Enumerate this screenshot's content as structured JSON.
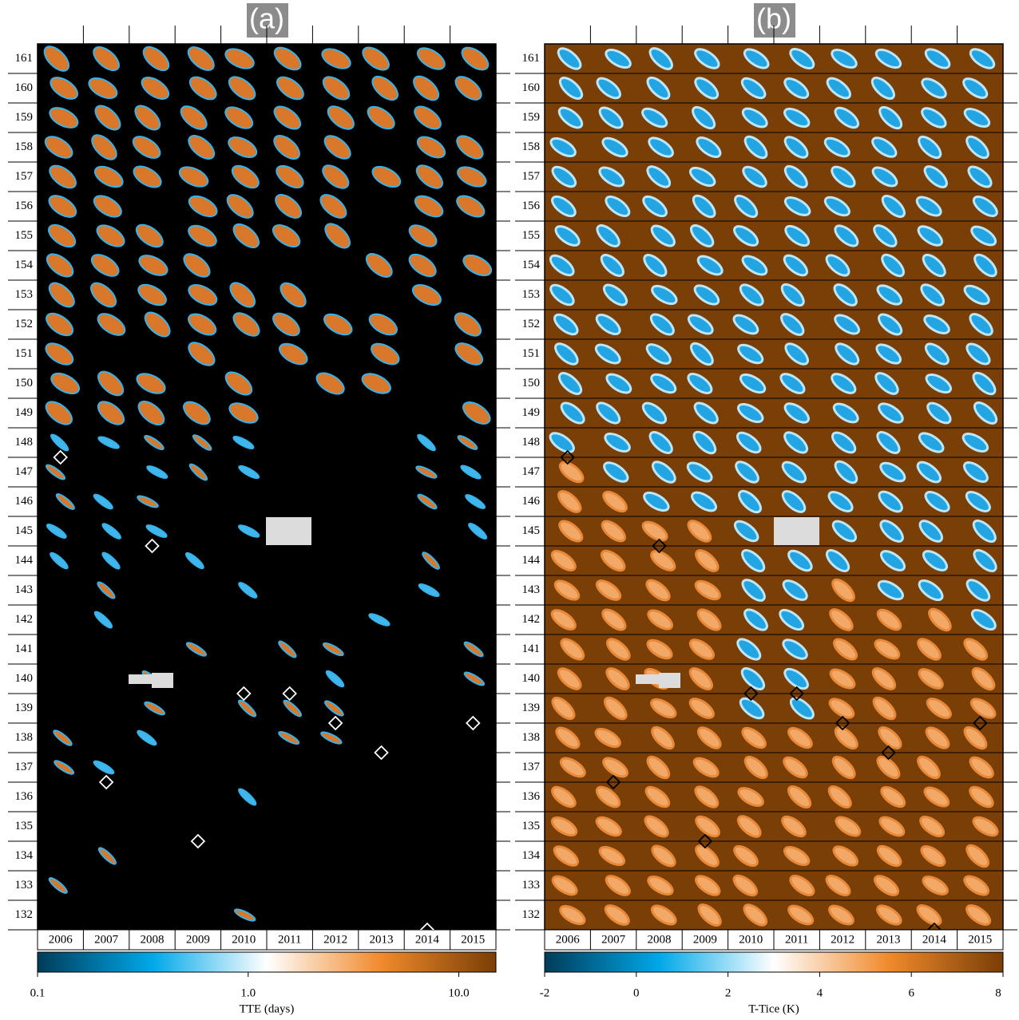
{
  "chart_data": [
    {
      "type": "heatmap",
      "title": "(a)",
      "categories": [
        "2006",
        "2007",
        "2008",
        "2009",
        "2010",
        "2011",
        "2012",
        "2013",
        "2014",
        "2015"
      ],
      "values": [
        147.5,
        136.5,
        144.5,
        134.5,
        139.5,
        139.5,
        138.5,
        137.5,
        131.5,
        138.5
      ],
      "marker_color": "#ffffff",
      "background": "#000000",
      "ylim": [
        131.5,
        161.5
      ],
      "yticks": [
        132,
        133,
        134,
        135,
        136,
        137,
        138,
        139,
        140,
        141,
        142,
        143,
        144,
        145,
        146,
        147,
        148,
        149,
        150,
        151,
        152,
        153,
        154,
        155,
        156,
        157,
        158,
        159,
        160,
        161
      ],
      "colorbar": {
        "label": "TTE (days)",
        "log": true,
        "lim": [
          0.1,
          15
        ],
        "ticks": [
          0.1,
          {
            "value": 1,
            "label": "1.0"
          },
          {
            "value": 10,
            "label": "10.0"
          }
        ],
        "colors": [
          "#003c5a",
          "#00a8e8",
          "#ffffff",
          "#f08a2c",
          "#7a3e06"
        ]
      }
    },
    {
      "type": "heatmap",
      "title": "(b)",
      "categories": [
        "2006",
        "2007",
        "2008",
        "2009",
        "2010",
        "2011",
        "2012",
        "2013",
        "2014",
        "2015"
      ],
      "values": [
        147.5,
        136.5,
        144.5,
        134.5,
        139.5,
        139.5,
        138.5,
        137.5,
        131.5,
        138.5
      ],
      "marker_color": "#000000",
      "background": "#7a3f06",
      "ylim": [
        131.5,
        161.5
      ],
      "yticks": [
        132,
        133,
        134,
        135,
        136,
        137,
        138,
        139,
        140,
        141,
        142,
        143,
        144,
        145,
        146,
        147,
        148,
        149,
        150,
        151,
        152,
        153,
        154,
        155,
        156,
        157,
        158,
        159,
        160,
        161
      ],
      "colorbar": {
        "label": "T-Tice (K)",
        "log": false,
        "lim": [
          -2,
          8
        ],
        "ticks": [
          -2,
          0,
          2,
          4,
          6,
          8
        ],
        "colors": [
          "#003c5a",
          "#00a8e8",
          "#ffffff",
          "#f08a2c",
          "#7a3e06"
        ]
      }
    }
  ]
}
